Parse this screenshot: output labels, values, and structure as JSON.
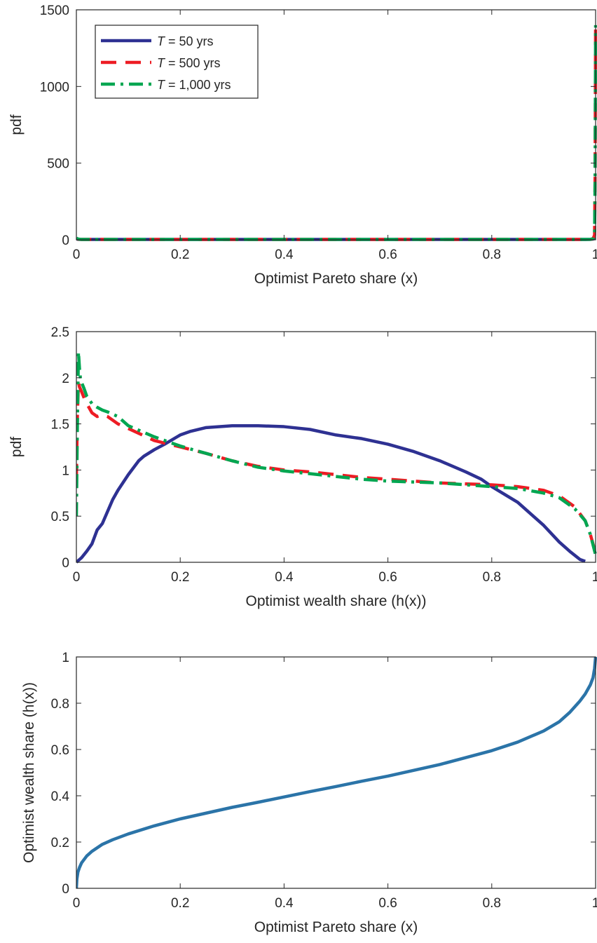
{
  "chart_data": [
    {
      "type": "line",
      "xlabel": "Optimist Pareto share (x)",
      "ylabel": "pdf",
      "xlim": [
        0,
        1
      ],
      "ylim": [
        0,
        1500
      ],
      "xticks": [
        "0",
        "0.2",
        "0.4",
        "0.6",
        "0.8",
        "1"
      ],
      "yticks": [
        "0",
        "500",
        "1000",
        "1500"
      ],
      "grid": false,
      "legend": {
        "placement": "top-left",
        "entries": [
          {
            "prefix": "T",
            "text": " = 50 yrs"
          },
          {
            "prefix": "T",
            "text": " = 500 yrs"
          },
          {
            "prefix": "T",
            "text": " = 1,000 yrs"
          }
        ]
      },
      "series": [
        {
          "name": "T = 50 yrs",
          "color": "#2e3192",
          "dash": "solid",
          "x": [
            0,
            0.001,
            0.003,
            0.01,
            0.1,
            0.3,
            0.5,
            0.7,
            0.9,
            0.98,
            0.99,
            0.995,
            0.998,
            1.0
          ],
          "y": [
            5,
            5,
            3,
            2,
            2,
            2,
            2,
            2,
            2,
            2,
            3,
            5,
            8,
            10
          ]
        },
        {
          "name": "T = 500 yrs",
          "color": "#ed1c24",
          "dash": "dashed",
          "x": [
            0,
            0.001,
            0.003,
            0.01,
            0.1,
            0.3,
            0.5,
            0.7,
            0.9,
            0.98,
            0.99,
            0.995,
            0.998,
            0.999,
            1.0
          ],
          "y": [
            12,
            8,
            4,
            2,
            2,
            2,
            2,
            2,
            2,
            2,
            3,
            6,
            30,
            400,
            1420
          ]
        },
        {
          "name": "T = 1,000 yrs",
          "color": "#00a651",
          "dash": "dashdot",
          "x": [
            0,
            0.001,
            0.003,
            0.01,
            0.1,
            0.3,
            0.5,
            0.7,
            0.9,
            0.98,
            0.99,
            0.995,
            0.998,
            0.999,
            1.0
          ],
          "y": [
            14,
            9,
            5,
            2,
            2,
            2,
            2,
            2,
            2,
            2,
            3,
            6,
            30,
            380,
            1400
          ]
        }
      ]
    },
    {
      "type": "line",
      "xlabel": "Optimist wealth share (h(x))",
      "ylabel": "pdf",
      "xlim": [
        0,
        1
      ],
      "ylim": [
        0,
        2.5
      ],
      "xticks": [
        "0",
        "0.2",
        "0.4",
        "0.6",
        "0.8",
        "1"
      ],
      "yticks": [
        "0",
        "0.5",
        "1",
        "1.5",
        "2",
        "2.5"
      ],
      "grid": false,
      "series": [
        {
          "name": "T = 50 yrs",
          "color": "#2e3192",
          "dash": "solid",
          "x": [
            0.0,
            0.01,
            0.02,
            0.03,
            0.04,
            0.05,
            0.06,
            0.07,
            0.08,
            0.1,
            0.12,
            0.13,
            0.15,
            0.17,
            0.2,
            0.22,
            0.25,
            0.3,
            0.35,
            0.4,
            0.45,
            0.5,
            0.55,
            0.6,
            0.65,
            0.7,
            0.75,
            0.78,
            0.8,
            0.85,
            0.88,
            0.9,
            0.93,
            0.95,
            0.97,
            0.98
          ],
          "y": [
            0.0,
            0.05,
            0.12,
            0.2,
            0.35,
            0.42,
            0.55,
            0.68,
            0.78,
            0.95,
            1.1,
            1.15,
            1.22,
            1.28,
            1.38,
            1.42,
            1.46,
            1.48,
            1.48,
            1.47,
            1.44,
            1.38,
            1.34,
            1.28,
            1.2,
            1.1,
            0.98,
            0.9,
            0.82,
            0.65,
            0.5,
            0.4,
            0.22,
            0.12,
            0.03,
            0.01
          ]
        },
        {
          "name": "T = 500 yrs",
          "color": "#ed1c24",
          "dash": "dashed",
          "x": [
            0.0,
            0.002,
            0.004,
            0.006,
            0.01,
            0.015,
            0.02,
            0.03,
            0.04,
            0.05,
            0.06,
            0.08,
            0.1,
            0.15,
            0.2,
            0.25,
            0.3,
            0.35,
            0.4,
            0.45,
            0.5,
            0.55,
            0.6,
            0.65,
            0.7,
            0.75,
            0.8,
            0.85,
            0.9,
            0.93,
            0.96,
            0.98,
            0.99,
            1.0
          ],
          "y": [
            0.9,
            1.6,
            1.95,
            1.9,
            1.85,
            1.78,
            1.72,
            1.62,
            1.58,
            1.6,
            1.58,
            1.5,
            1.45,
            1.32,
            1.25,
            1.18,
            1.1,
            1.04,
            1.0,
            0.98,
            0.95,
            0.92,
            0.9,
            0.88,
            0.86,
            0.85,
            0.84,
            0.82,
            0.78,
            0.72,
            0.6,
            0.45,
            0.3,
            0.1
          ]
        },
        {
          "name": "T = 1,000 yrs",
          "color": "#00a651",
          "dash": "dashdot",
          "x": [
            0.0,
            0.002,
            0.004,
            0.006,
            0.008,
            0.01,
            0.015,
            0.02,
            0.03,
            0.04,
            0.05,
            0.06,
            0.08,
            0.1,
            0.15,
            0.2,
            0.25,
            0.3,
            0.35,
            0.4,
            0.45,
            0.5,
            0.55,
            0.6,
            0.65,
            0.7,
            0.75,
            0.8,
            0.85,
            0.9,
            0.93,
            0.96,
            0.98,
            0.99,
            1.0
          ],
          "y": [
            0.5,
            1.5,
            2.28,
            2.1,
            1.98,
            1.95,
            1.88,
            1.8,
            1.72,
            1.68,
            1.65,
            1.63,
            1.58,
            1.48,
            1.36,
            1.26,
            1.18,
            1.1,
            1.03,
            0.99,
            0.96,
            0.93,
            0.9,
            0.88,
            0.87,
            0.86,
            0.84,
            0.82,
            0.8,
            0.75,
            0.7,
            0.58,
            0.45,
            0.3,
            0.08
          ]
        }
      ]
    },
    {
      "type": "line",
      "xlabel": "Optimist Pareto share (x)",
      "ylabel": "Optimist wealth share (h(x))",
      "xlim": [
        0,
        1
      ],
      "ylim": [
        0,
        1
      ],
      "xticks": [
        "0",
        "0.2",
        "0.4",
        "0.6",
        "0.8",
        "1"
      ],
      "yticks": [
        "0",
        "0.2",
        "0.4",
        "0.6",
        "0.8",
        "1"
      ],
      "grid": false,
      "series": [
        {
          "color": "#2b74a8",
          "dash": "solid",
          "x": [
            0.0,
            0.001,
            0.003,
            0.006,
            0.01,
            0.02,
            0.03,
            0.05,
            0.07,
            0.1,
            0.15,
            0.2,
            0.25,
            0.3,
            0.35,
            0.4,
            0.45,
            0.5,
            0.55,
            0.6,
            0.65,
            0.7,
            0.75,
            0.8,
            0.85,
            0.9,
            0.93,
            0.95,
            0.97,
            0.98,
            0.99,
            0.995,
            0.998,
            1.0
          ],
          "y": [
            0.0,
            0.04,
            0.07,
            0.09,
            0.11,
            0.14,
            0.16,
            0.19,
            0.21,
            0.235,
            0.27,
            0.3,
            0.325,
            0.35,
            0.372,
            0.395,
            0.418,
            0.44,
            0.463,
            0.485,
            0.51,
            0.535,
            0.565,
            0.595,
            0.632,
            0.68,
            0.72,
            0.76,
            0.81,
            0.84,
            0.88,
            0.91,
            0.95,
            1.0
          ]
        }
      ]
    }
  ]
}
